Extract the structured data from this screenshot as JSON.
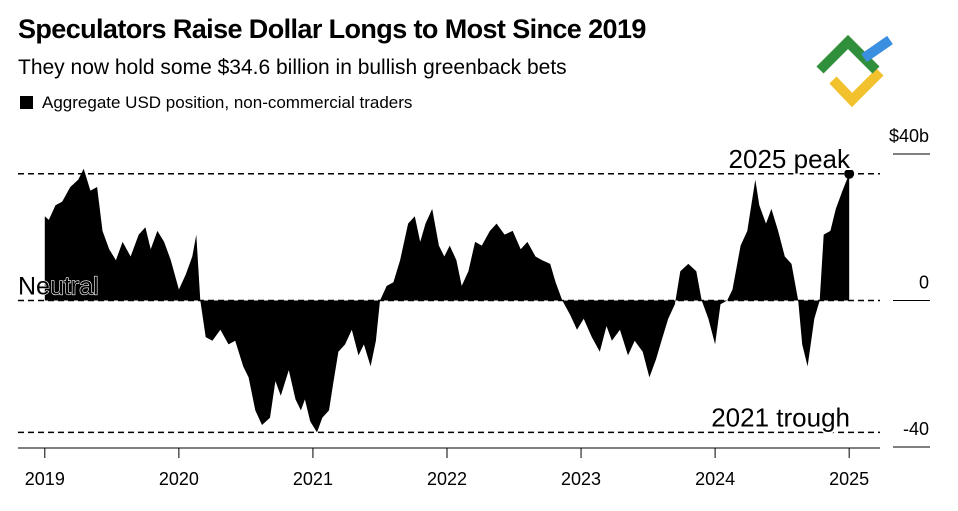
{
  "chart_data": {
    "type": "area",
    "title": "Speculators Raise Dollar Longs to Most Since 2019",
    "subtitle": "They now hold some $34.6 billion in bullish greenback bets",
    "x": [
      2019.0,
      2019.03,
      2019.08,
      2019.13,
      2019.19,
      2019.25,
      2019.29,
      2019.34,
      2019.39,
      2019.43,
      2019.48,
      2019.53,
      2019.58,
      2019.64,
      2019.7,
      2019.75,
      2019.79,
      2019.84,
      2019.89,
      2019.94,
      2020.0,
      2020.05,
      2020.1,
      2020.13,
      2020.16,
      2020.2,
      2020.25,
      2020.31,
      2020.37,
      2020.42,
      2020.48,
      2020.52,
      2020.57,
      2020.62,
      2020.68,
      2020.72,
      2020.76,
      2020.82,
      2020.87,
      2020.91,
      2020.94,
      2020.98,
      2021.03,
      2021.07,
      2021.12,
      2021.15,
      2021.19,
      2021.24,
      2021.29,
      2021.34,
      2021.38,
      2021.43,
      2021.47,
      2021.5,
      2021.55,
      2021.6,
      2021.65,
      2021.71,
      2021.76,
      2021.8,
      2021.84,
      2021.89,
      2021.94,
      2021.98,
      2022.02,
      2022.07,
      2022.11,
      2022.16,
      2022.21,
      2022.26,
      2022.32,
      2022.37,
      2022.43,
      2022.49,
      2022.55,
      2022.6,
      2022.66,
      2022.71,
      2022.77,
      2022.81,
      2022.86,
      2022.92,
      2022.97,
      2023.02,
      2023.08,
      2023.14,
      2023.19,
      2023.23,
      2023.29,
      2023.35,
      2023.4,
      2023.46,
      2023.51,
      2023.56,
      2023.6,
      2023.65,
      2023.7,
      2023.74,
      2023.8,
      2023.86,
      2023.9,
      2023.95,
      2024.0,
      2024.04,
      2024.09,
      2024.13,
      2024.19,
      2024.24,
      2024.3,
      2024.33,
      2024.38,
      2024.42,
      2024.47,
      2024.52,
      2024.57,
      2024.62,
      2024.65,
      2024.69,
      2024.74,
      2024.78,
      2024.81,
      2024.86,
      2024.9,
      2024.95,
      2025.0
    ],
    "series": [
      {
        "name": "Aggregate USD position, non-commercial traders",
        "color": "#000000",
        "values": [
          23,
          22,
          26,
          27,
          31,
          33,
          36,
          30,
          31,
          19,
          14,
          11,
          16,
          12,
          18,
          20,
          14,
          19,
          16,
          11,
          3,
          7,
          12,
          18,
          0,
          -10,
          -11,
          -8,
          -12,
          -11,
          -18,
          -21,
          -30,
          -34,
          -32,
          -22,
          -26,
          -19,
          -27,
          -30,
          -27,
          -33,
          -36,
          -32,
          -30,
          -23,
          -14,
          -12,
          -8,
          -15,
          -12,
          -18,
          -11,
          0,
          4,
          5,
          11,
          21,
          23,
          16,
          21,
          25,
          15,
          12,
          15,
          11,
          4,
          8,
          16,
          15,
          19,
          21,
          18,
          19,
          14,
          16,
          12,
          11,
          10,
          5,
          0,
          -4,
          -8,
          -5,
          -10,
          -14,
          -7,
          -11,
          -8,
          -15,
          -11,
          -14,
          -21,
          -16,
          -11,
          -5,
          -1,
          8,
          10,
          8,
          0,
          -5,
          -12,
          -1,
          0,
          3,
          15,
          19,
          33,
          26,
          21,
          25,
          19,
          12,
          10,
          0,
          -12,
          -18,
          -5,
          0,
          18,
          19,
          25,
          30,
          34.6
        ]
      }
    ],
    "xlim": [
      2018.8,
      2025.23
    ],
    "xticks": [
      2019,
      2020,
      2021,
      2022,
      2023,
      2024,
      2025
    ],
    "ylim": [
      -40,
      40
    ],
    "yticks": [
      {
        "value": 40,
        "label": "$40b"
      },
      0,
      -40
    ],
    "annotations": [
      {
        "text": "2025 peak",
        "value": 34.6
      },
      {
        "text": "Neutral",
        "value": 0
      },
      {
        "text": "2021 trough",
        "value": -36
      }
    ]
  }
}
